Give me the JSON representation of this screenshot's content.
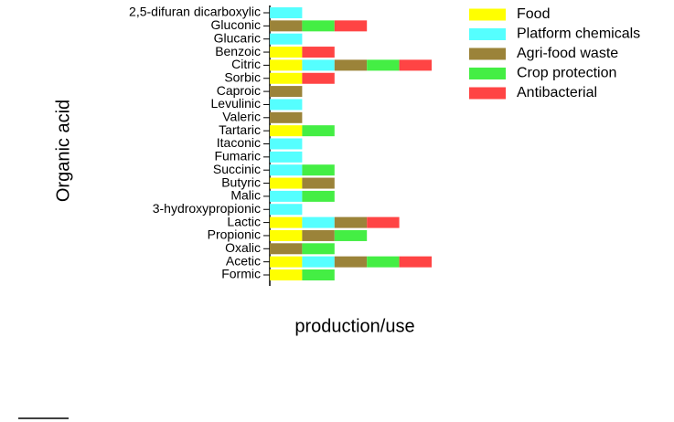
{
  "chart_data": {
    "type": "stacked-barh",
    "x_label": "production/use",
    "y_label": "Organic acid",
    "categories": [
      "2,5-difuran dicarboxylic",
      "Gluconic",
      "Glucaric",
      "Benzoic",
      "Citric",
      "Sorbic",
      "Caproic",
      "Levulinic",
      "Valeric",
      "Tartaric",
      "Itaconic",
      "Fumaric",
      "Succinic",
      "Butyric",
      "Malic",
      "3-hydroxypropionic",
      "Lactic",
      "Propionic",
      "Oxalic",
      "Acetic",
      "Formic"
    ],
    "xlim": [
      0,
      5
    ],
    "legend": "upper-right",
    "series": [
      {
        "name": "Food",
        "color": "#ffff00",
        "values": [
          0,
          0,
          0,
          1,
          1,
          1,
          0,
          0,
          0,
          1,
          0,
          0,
          0,
          1,
          0,
          0,
          1,
          1,
          0,
          1,
          1
        ]
      },
      {
        "name": "Platform chemicals",
        "color": "#55ffff",
        "values": [
          1,
          0,
          1,
          0,
          1,
          0,
          0,
          1,
          0,
          0,
          1,
          1,
          1,
          0,
          1,
          1,
          1,
          0,
          0,
          1,
          0
        ]
      },
      {
        "name": "Agri-food waste",
        "color": "#9b8339",
        "values": [
          0,
          1,
          0,
          0,
          1,
          0,
          1,
          0,
          1,
          0,
          0,
          0,
          0,
          1,
          0,
          0,
          1,
          1,
          1,
          1,
          0
        ]
      },
      {
        "name": "Crop protection",
        "color": "#44ee44",
        "values": [
          0,
          1,
          0,
          0,
          1,
          0,
          0,
          0,
          0,
          1,
          0,
          0,
          1,
          0,
          1,
          0,
          0,
          1,
          1,
          1,
          1
        ]
      },
      {
        "name": "Antibacterial",
        "color": "#ff4444",
        "values": [
          0,
          1,
          0,
          1,
          1,
          1,
          0,
          0,
          0,
          0,
          0,
          0,
          0,
          0,
          0,
          0,
          1,
          0,
          0,
          1,
          0
        ]
      }
    ]
  }
}
